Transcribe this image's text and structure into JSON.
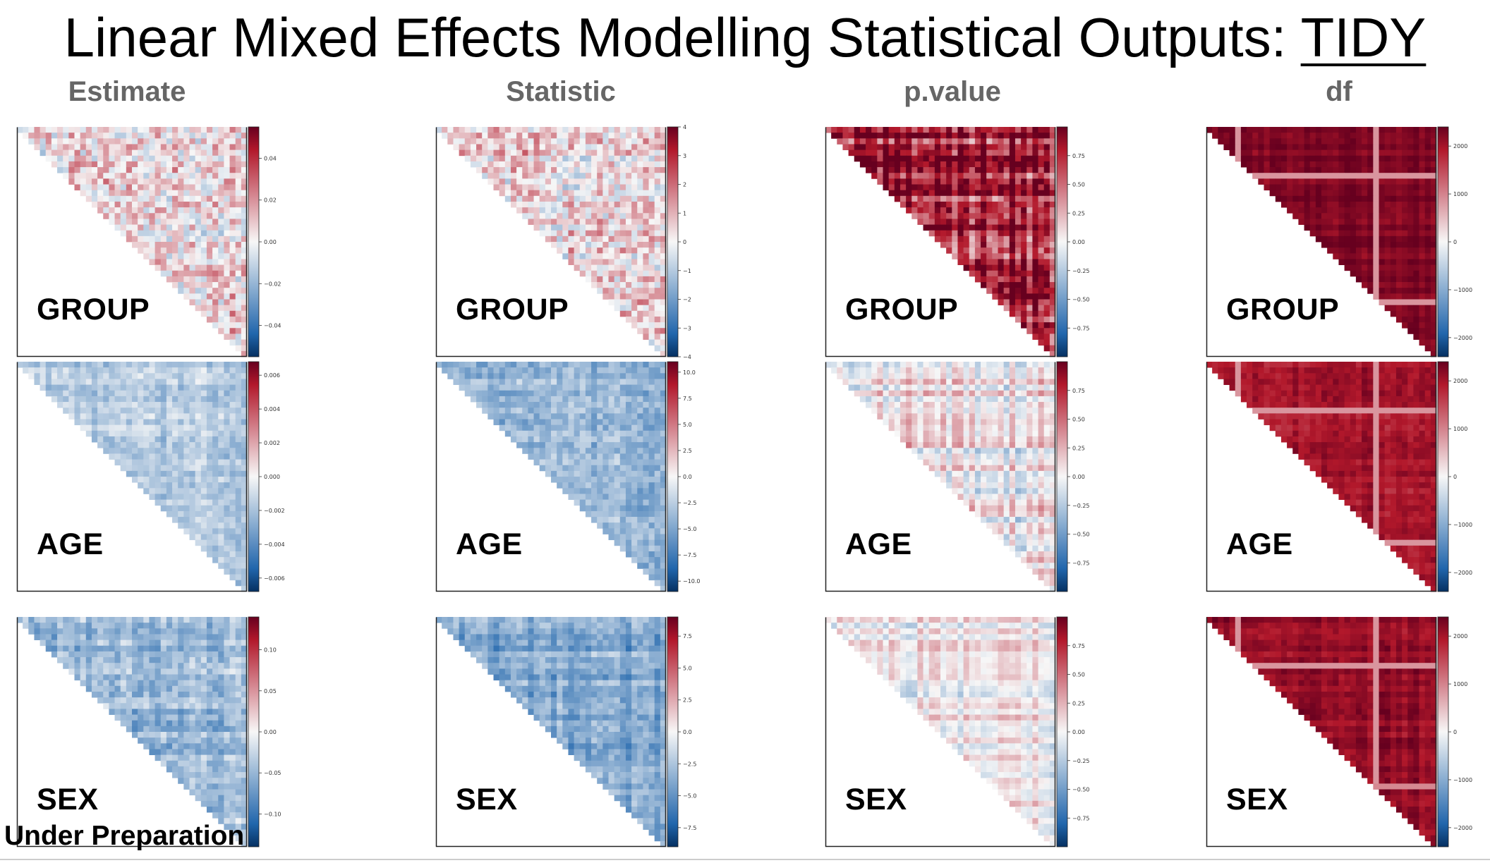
{
  "title": {
    "main": "Linear Mixed Effects Modelling Statistical Outputs: ",
    "emphasis": "TIDY"
  },
  "columns": [
    "Estimate",
    "Statistic",
    "p.value",
    "df"
  ],
  "rows": [
    "GROUP",
    "AGE",
    "SEX"
  ],
  "footer": "Under Preparation",
  "colors": {
    "positive": "#b2182b",
    "neutral": "#f7f7f7",
    "negative": "#2166ac",
    "column_header": "#666666"
  },
  "colorbars": [
    [
      {
        "ticks": [
          "0.04",
          "0.02",
          "0.00",
          "−0.02",
          "−0.04"
        ],
        "vmin": -0.055,
        "vmax": 0.055,
        "tick_values": [
          0.04,
          0.02,
          0,
          -0.02,
          -0.04
        ]
      },
      {
        "ticks": [
          "0.006",
          "0.004",
          "0.002",
          "0.000",
          "−0.002",
          "−0.004",
          "−0.006"
        ],
        "vmin": -0.0068,
        "vmax": 0.0068,
        "tick_values": [
          0.006,
          0.004,
          0.002,
          0,
          -0.002,
          -0.004,
          -0.006
        ]
      },
      {
        "ticks": [
          "0.10",
          "0.05",
          "0.00",
          "−0.05",
          "−0.10"
        ],
        "vmin": -0.14,
        "vmax": 0.14,
        "tick_values": [
          0.1,
          0.05,
          0,
          -0.05,
          -0.1
        ]
      }
    ],
    [
      {
        "ticks": [
          "4",
          "3",
          "2",
          "1",
          "0",
          "−1",
          "−2",
          "−3",
          "−4"
        ],
        "vmin": -4,
        "vmax": 4,
        "tick_values": [
          4,
          3,
          2,
          1,
          0,
          -1,
          -2,
          -3,
          -4
        ]
      },
      {
        "ticks": [
          "10.0",
          "7.5",
          "5.0",
          "2.5",
          "0.0",
          "−2.5",
          "−5.0",
          "−7.5",
          "−10.0"
        ],
        "vmin": -11,
        "vmax": 11,
        "tick_values": [
          10,
          7.5,
          5,
          2.5,
          0,
          -2.5,
          -5,
          -7.5,
          -10
        ]
      },
      {
        "ticks": [
          "7.5",
          "5.0",
          "2.5",
          "0.0",
          "−2.5",
          "−5.0",
          "−7.5"
        ],
        "vmin": -9,
        "vmax": 9,
        "tick_values": [
          7.5,
          5,
          2.5,
          0,
          -2.5,
          -5,
          -7.5
        ]
      }
    ],
    [
      {
        "ticks": [
          "0.75",
          "0.50",
          "0.25",
          "0.00",
          "−0.25",
          "−0.50",
          "−0.75"
        ],
        "vmin": -1,
        "vmax": 1,
        "tick_values": [
          0.75,
          0.5,
          0.25,
          0,
          -0.25,
          -0.5,
          -0.75
        ]
      },
      {
        "ticks": [
          "0.75",
          "0.50",
          "0.25",
          "0.00",
          "−0.25",
          "−0.50",
          "−0.75"
        ],
        "vmin": -1,
        "vmax": 1,
        "tick_values": [
          0.75,
          0.5,
          0.25,
          0,
          -0.25,
          -0.5,
          -0.75
        ]
      },
      {
        "ticks": [
          "0.75",
          "0.50",
          "0.25",
          "0.00",
          "−0.25",
          "−0.50",
          "−0.75"
        ],
        "vmin": -1,
        "vmax": 1,
        "tick_values": [
          0.75,
          0.5,
          0.25,
          0,
          -0.25,
          -0.5,
          -0.75
        ]
      }
    ],
    [
      {
        "ticks": [
          "2000",
          "1000",
          "0",
          "−1000",
          "−2000"
        ],
        "vmin": -2400,
        "vmax": 2400,
        "tick_values": [
          2000,
          1000,
          0,
          -1000,
          -2000
        ]
      },
      {
        "ticks": [
          "2000",
          "1000",
          "0",
          "−1000",
          "−2000"
        ],
        "vmin": -2400,
        "vmax": 2400,
        "tick_values": [
          2000,
          1000,
          0,
          -1000,
          -2000
        ]
      },
      {
        "ticks": [
          "2000",
          "1000",
          "0",
          "−1000",
          "−2000"
        ],
        "vmin": -2400,
        "vmax": 2400,
        "tick_values": [
          2000,
          1000,
          0,
          -1000,
          -2000
        ]
      }
    ]
  ]
}
